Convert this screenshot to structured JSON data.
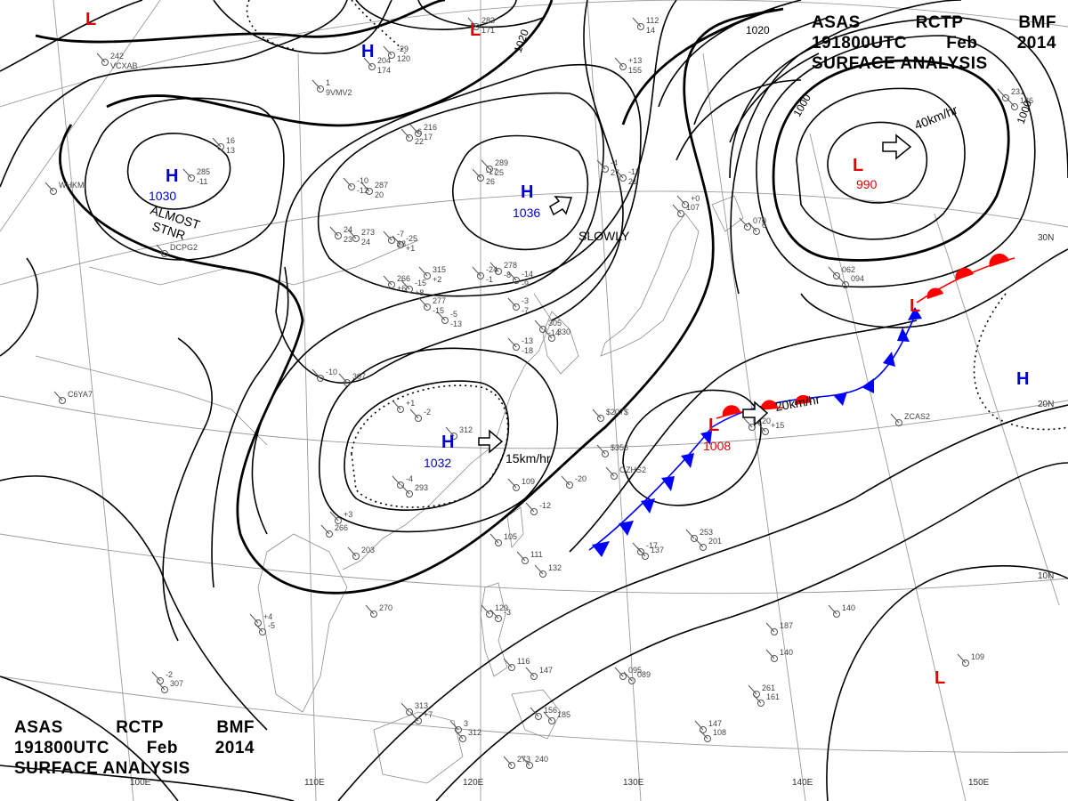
{
  "header_top": {
    "line1": [
      "ASAS",
      "RCTP",
      "BMF"
    ],
    "line2": [
      "191800UTC",
      "Feb",
      "2014"
    ],
    "line3": "SURFACE ANALYSIS"
  },
  "header_bottom": {
    "line1": [
      "ASAS",
      "RCTP",
      "BMF"
    ],
    "line2": [
      "191800UTC",
      "Feb",
      "2014"
    ],
    "line3": "SURFACE ANALYSIS"
  },
  "isobar_labels": [
    "1020",
    "1020",
    "1000",
    "1000"
  ],
  "highs": [
    {
      "letter": "H",
      "value": "1030",
      "motion": "ALMOST",
      "motion2": "STNR"
    },
    {
      "letter": "H",
      "value": "1036",
      "motion": "SLOWLY"
    },
    {
      "letter": "H",
      "value": "1032",
      "motion": "15km/hr"
    },
    {
      "letter": "H",
      "value": ""
    },
    {
      "letter": "H",
      "value": ""
    }
  ],
  "lows": [
    {
      "letter": "L",
      "value": "990",
      "motion": "40km/hr"
    },
    {
      "letter": "L",
      "value": "1008",
      "motion": "20km/hr"
    },
    {
      "letter": "L",
      "value": ""
    },
    {
      "letter": "L",
      "value": ""
    },
    {
      "letter": "L",
      "value": ""
    },
    {
      "letter": "L",
      "value": ""
    }
  ],
  "longitude_labels": [
    "110E",
    "120E",
    "130E",
    "140E",
    "150E",
    "100E"
  ],
  "latitude_labels": [
    "30N",
    "20N",
    "10N"
  ],
  "station_labels": [
    "242",
    "1",
    "204",
    "-29",
    "283",
    "112",
    "+13",
    "16",
    "285",
    "-10",
    "287",
    "-6",
    "216",
    "-17",
    "289",
    "-4",
    "-13",
    "24",
    "273",
    "-7",
    "-25",
    "315",
    "-24",
    "278",
    "-14",
    "266",
    "-15",
    "277",
    "-5",
    "-3",
    "305",
    "-13",
    "330",
    "-10",
    "307",
    "+1",
    "-2",
    "312",
    "-4",
    "293",
    "+3",
    "266",
    "203",
    "+4",
    "-5",
    "270",
    "-2",
    "307",
    "313",
    "+7",
    "3",
    "312",
    "273",
    "240",
    "156",
    "185",
    "116",
    "147",
    "129",
    "-3",
    "109",
    "-12",
    "105",
    "111",
    "132",
    "-17",
    "137",
    "253",
    "201",
    "220",
    "+15",
    "187",
    "140",
    "261",
    "161",
    "140",
    "109",
    "147",
    "108",
    "095",
    "089",
    "062",
    "094",
    "107",
    "+0",
    "070",
    "6",
    "231",
    "186",
    "-20",
    "OZHS2",
    "$356",
    "$207$",
    "C6YA7",
    "WHKM",
    "DCPG2",
    "ZCAS2",
    "VCXAB",
    "9VMV2",
    "174",
    "120",
    "171",
    "14",
    "155",
    "13",
    "-11",
    "-12",
    "20",
    "22",
    "17",
    "26",
    "25",
    "27",
    "21",
    "23",
    "24",
    "28",
    "+1",
    "+2",
    "-1",
    "-8",
    "-9",
    "+6",
    "+8",
    "-15",
    "-13",
    "-7",
    "-14",
    "-18"
  ],
  "colors": {
    "high": "#0000cc",
    "low": "#e00000",
    "isobar": "#000000",
    "cold_front": "#0000ff",
    "warm_front": "#ff0000",
    "grid": "#9a9a9a"
  }
}
